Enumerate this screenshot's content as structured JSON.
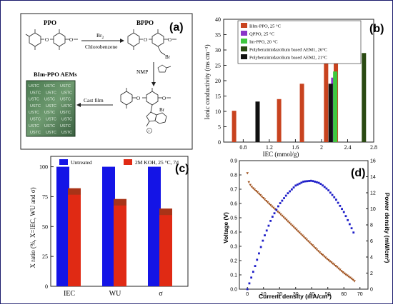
{
  "panel_a": {
    "label": "(a)",
    "ppo": "PPO",
    "bppo": "BPPO",
    "reagent": "Br",
    "reagent_sub": "2",
    "solvent": "Chlorobenzene",
    "step2": "NMP",
    "step3": "Cast film",
    "membrane_title": "BIm-PPO AEMs",
    "membrane_text": "USTC",
    "br_group": "Br",
    "br_minus": "Br",
    "o": "O"
  },
  "chart_data": [
    {
      "type": "bar",
      "panel": "(b)",
      "ylabel": "Ionic conductivity (ms cm⁻¹)",
      "xlabel": "IEC (mmol/g)",
      "xlim": [
        0.5,
        2.8
      ],
      "ylim": [
        0,
        40
      ],
      "xticks": [
        0.8,
        1.2,
        1.6,
        2.0,
        2.4,
        2.8
      ],
      "yticks": [
        0,
        5,
        10,
        15,
        20,
        25,
        30,
        35,
        40
      ],
      "legend": [
        "BIm-PPO, 25 °C",
        "QPPO, 25 °C",
        "Im-PPO, 20 °C",
        "Polybenzimidazolium based AEM1, 26°C",
        "Polybenzimidazolium based AEM2, 21°C"
      ],
      "colors": [
        "#c8431f",
        "#8a35c8",
        "#3ec83e",
        "#2a4a12",
        "#101010"
      ],
      "series": [
        {
          "name": "BIm-PPO, 25 °C",
          "points": [
            [
              0.66,
              10.2
            ],
            [
              1.35,
              14.0
            ],
            [
              1.7,
              19.0
            ],
            [
              2.07,
              27.0
            ],
            [
              2.22,
              37.0
            ]
          ]
        },
        {
          "name": "QPPO, 25 °C",
          "points": [
            [
              2.18,
              21.0
            ]
          ]
        },
        {
          "name": "Im-PPO, 20 °C",
          "points": [
            [
              2.21,
              23.0
            ]
          ]
        },
        {
          "name": "Polybenzimidazolium based AEM1, 26°C",
          "points": [
            [
              2.65,
              29.0
            ]
          ]
        },
        {
          "name": "Polybenzimidazolium based AEM2, 21°C",
          "points": [
            [
              1.02,
              13.2
            ],
            [
              2.14,
              19.0
            ]
          ]
        }
      ]
    },
    {
      "type": "bar",
      "panel": "(c)",
      "ylabel": "X ratio (%, X=IEC, WU and σ)",
      "categories": [
        "IEC",
        "WU",
        "σ"
      ],
      "ylim": [
        0,
        100
      ],
      "yticks": [
        0,
        25,
        50,
        75,
        100
      ],
      "legend": [
        "Untreated",
        "2M KOH, 25 °C, 7d"
      ],
      "series": [
        {
          "name": "Untreated",
          "values": [
            100,
            100,
            100
          ],
          "color": "#1414e6"
        },
        {
          "name": "2M KOH, 25 °C, 7d",
          "values": [
            82,
            73,
            65
          ],
          "color": "#e02a14"
        }
      ]
    },
    {
      "type": "line",
      "panel": "(d)",
      "xlabel": "Current density (mA/cm²)",
      "ylabel": "Voltage (V)",
      "y2label": "Power density (mW/cm²)",
      "xlim": [
        -5,
        75
      ],
      "ylim": [
        0,
        0.9
      ],
      "y2lim": [
        0,
        16
      ],
      "xticks": [
        0,
        10,
        20,
        30,
        40,
        50,
        60,
        70
      ],
      "yticks": [
        0.0,
        0.1,
        0.2,
        0.3,
        0.4,
        0.5,
        0.6,
        0.7,
        0.8,
        0.9
      ],
      "y2ticks": [
        0,
        2,
        4,
        6,
        8,
        10,
        12,
        14,
        16
      ],
      "voltage_curve": {
        "color": "#a0521e",
        "x": [
          0,
          1,
          3,
          6,
          10,
          15,
          20,
          25,
          30,
          35,
          40,
          45,
          50,
          55,
          60,
          65,
          67
        ],
        "y": [
          0.81,
          0.74,
          0.71,
          0.68,
          0.635,
          0.58,
          0.53,
          0.475,
          0.42,
          0.365,
          0.31,
          0.255,
          0.205,
          0.16,
          0.11,
          0.07,
          0.05
        ]
      },
      "power_curve": {
        "color": "#1e1ec8",
        "x": [
          0,
          5,
          10,
          15,
          20,
          25,
          30,
          35,
          40,
          45,
          50,
          55,
          60,
          65,
          67
        ],
        "y": [
          0,
          3.0,
          6.3,
          8.8,
          10.6,
          11.9,
          12.9,
          13.4,
          13.5,
          13.2,
          12.4,
          11.2,
          9.6,
          7.5,
          6.6
        ]
      }
    }
  ]
}
